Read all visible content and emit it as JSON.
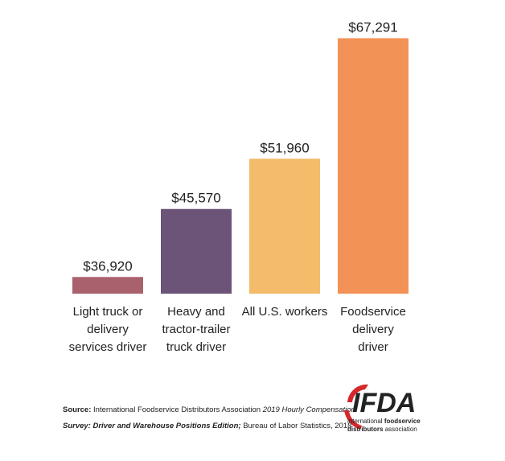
{
  "chart_data": {
    "type": "bar",
    "categories": [
      [
        "Light truck or",
        "delivery",
        "services driver"
      ],
      [
        "Heavy and",
        "tractor-trailer",
        "truck driver"
      ],
      [
        "All U.S. workers"
      ],
      [
        "Foodservice",
        "delivery",
        "driver"
      ]
    ],
    "values": [
      36920,
      45570,
      51960,
      67291
    ],
    "value_labels": [
      "$36,920",
      "$45,570",
      "$51,960",
      "$67,291"
    ],
    "colors": [
      "#a9616e",
      "#6b5478",
      "#f3bb6a",
      "#f39256"
    ],
    "ylim": [
      34800,
      70000
    ]
  },
  "footer": {
    "source_label": "Source:",
    "source_text": "International Foodservice Distributors Association",
    "source_italic": "2019 Hourly Compensation",
    "source_italic_2": "Survey: Driver and Warehouse Positions Edition;",
    "source_text_2": "Bureau of Labor Statistics, 2018"
  },
  "logo": {
    "name": "IFDA",
    "line1a": "international",
    "line1b": "foodservice",
    "line2a": "distributors",
    "line2b": "association"
  }
}
